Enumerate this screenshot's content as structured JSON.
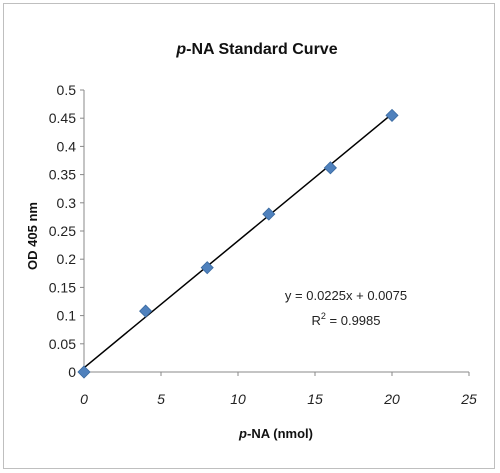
{
  "chart_data": {
    "type": "scatter",
    "title_prefix": "p",
    "title_rest": "-NA Standard Curve",
    "xlabel_prefix": "p",
    "xlabel_rest": "-NA (nmol)",
    "ylabel": "OD 405 nm",
    "xlim": [
      0,
      25
    ],
    "ylim": [
      0,
      0.5
    ],
    "x_ticks": [
      "0",
      "5",
      "10",
      "15",
      "20",
      "25"
    ],
    "y_ticks": [
      "0",
      "0.05",
      "0.1",
      "0.15",
      "0.2",
      "0.25",
      "0.3",
      "0.35",
      "0.4",
      "0.45",
      "0.5"
    ],
    "grid": false,
    "marker_color": "#4f81bd",
    "series": [
      {
        "x": [
          0,
          4,
          8,
          12,
          16,
          20
        ],
        "y": [
          0,
          0.108,
          0.185,
          0.28,
          0.362,
          0.455
        ]
      }
    ],
    "trendline": {
      "slope": 0.0225,
      "intercept": 0.0075,
      "color": "#000000",
      "equation": "y = 0.0225x + 0.0075",
      "r2_prefix": "R",
      "r2_exp": "2",
      "r2_rest": " = 0.9985"
    }
  }
}
